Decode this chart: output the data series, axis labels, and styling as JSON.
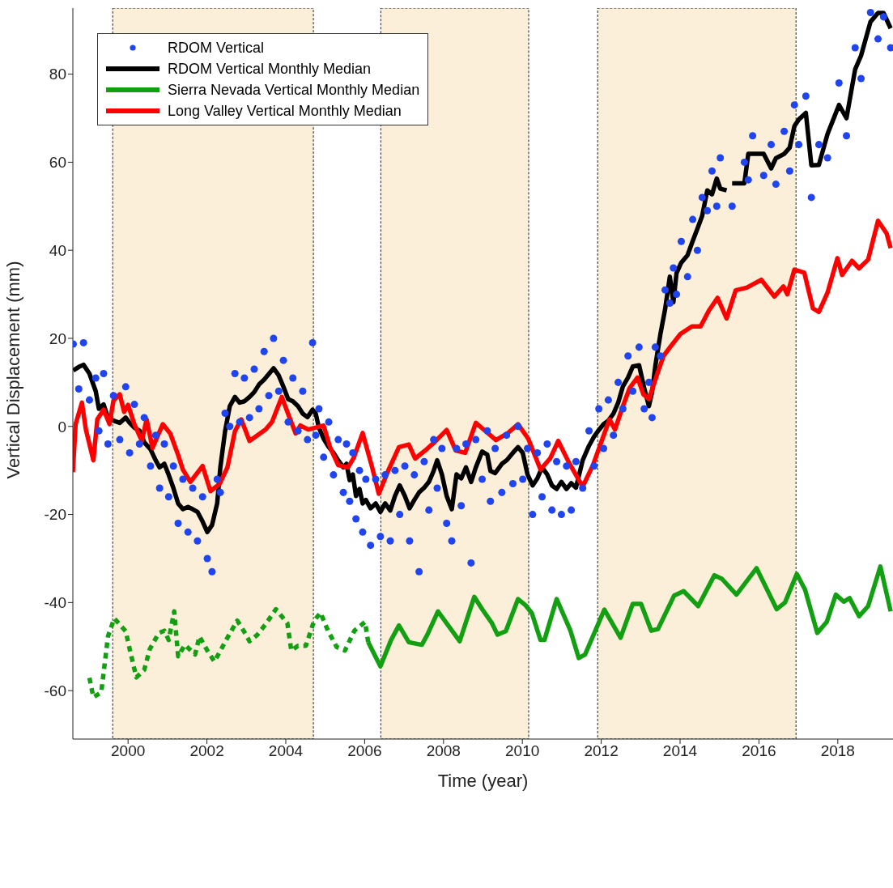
{
  "chart_data": {
    "type": "line",
    "xlabel": "Time (year)",
    "ylabel": "Vertical Displacement (mm)",
    "xlim": [
      1998.6,
      2019.4
    ],
    "xticks": [
      2000,
      2002,
      2004,
      2006,
      2008,
      2010,
      2012,
      2014,
      2016,
      2018
    ],
    "ylim": [
      -71,
      95
    ],
    "yticks": [
      -60,
      -40,
      -20,
      0,
      20,
      40,
      60,
      80
    ],
    "legend": "top left",
    "bands": [
      {
        "axis": "x",
        "from": 1999.61,
        "to": 2004.7,
        "color": "#fcefd9"
      },
      {
        "axis": "x",
        "from": 2006.41,
        "to": 2010.16,
        "color": "#fcefd9"
      },
      {
        "axis": "x",
        "from": 2011.91,
        "to": 2016.94,
        "color": "#fcefd9"
      }
    ],
    "series": [
      {
        "name": "RDOM Vertical",
        "type": "scatter",
        "marker": "circle",
        "color": "#1f44f0",
        "x": [
          1998.61,
          1998.75,
          1998.87,
          1999.02,
          1999.18,
          1999.26,
          1999.38,
          1999.49,
          1999.63,
          1999.79,
          1999.94,
          2000.04,
          2000.16,
          2000.29,
          2000.41,
          2000.57,
          2000.7,
          2000.8,
          2000.92,
          2001.03,
          2001.15,
          2001.27,
          2001.39,
          2001.52,
          2001.64,
          2001.76,
          2001.89,
          2002.01,
          2002.13,
          2002.26,
          2002.34,
          2002.46,
          2002.58,
          2002.71,
          2002.83,
          2002.95,
          2003.08,
          2003.2,
          2003.32,
          2003.45,
          2003.57,
          2003.69,
          2003.82,
          2003.94,
          2004.06,
          2004.18,
          2004.31,
          2004.43,
          2004.55,
          2004.68,
          2004.76,
          2004.84,
          2004.96,
          2005.09,
          2005.21,
          2005.33,
          2005.46,
          2005.54,
          2005.62,
          2005.7,
          2005.78,
          2005.87,
          2005.95,
          2006.03,
          2006.15,
          2006.28,
          2006.4,
          2006.52,
          2006.65,
          2006.77,
          2006.89,
          2007.02,
          2007.14,
          2007.26,
          2007.38,
          2007.51,
          2007.63,
          2007.75,
          2007.84,
          2007.96,
          2008.08,
          2008.21,
          2008.33,
          2008.45,
          2008.57,
          2008.7,
          2008.82,
          2008.98,
          2009.11,
          2009.19,
          2009.31,
          2009.48,
          2009.6,
          2009.76,
          2009.89,
          2010.01,
          2010.13,
          2010.26,
          2010.38,
          2010.5,
          2010.63,
          2010.75,
          2010.87,
          2010.99,
          2011.12,
          2011.24,
          2011.36,
          2011.53,
          2011.69,
          2011.82,
          2011.94,
          2012.06,
          2012.18,
          2012.31,
          2012.43,
          2012.55,
          2012.68,
          2012.8,
          2012.96,
          2013.09,
          2013.21,
          2013.29,
          2013.37,
          2013.5,
          2013.62,
          2013.74,
          2013.83,
          2013.91,
          2014.03,
          2014.19,
          2014.32,
          2014.44,
          2014.56,
          2014.69,
          2014.81,
          2014.93,
          2015.02,
          2015.32,
          2015.63,
          2015.73,
          2015.84,
          2016.12,
          2016.31,
          2016.43,
          2016.64,
          2016.78,
          2016.9,
          2017.01,
          2017.19,
          2017.33,
          2017.52,
          2017.74,
          2018.03,
          2018.22,
          2018.44,
          2018.59,
          2018.83,
          2019.02,
          2019.16,
          2019.34
        ],
        "values": [
          18.7,
          8.5,
          19,
          6,
          11,
          -1,
          12,
          -4,
          7,
          -3,
          9,
          -6,
          5,
          -4,
          2,
          -9,
          -2,
          -14,
          -4,
          -16,
          -9,
          -22,
          -12,
          -24,
          -14,
          -26,
          -16,
          -30,
          -33,
          -12,
          -15,
          3,
          0,
          12,
          1,
          11,
          2,
          13,
          4,
          17,
          7,
          20,
          8,
          15,
          1,
          11,
          -1,
          8,
          -3,
          19,
          -2,
          4,
          -7,
          1,
          -11,
          -3,
          -15,
          -4,
          -17,
          -6,
          -21,
          -10,
          -24,
          -12,
          -27,
          -12,
          -25,
          -11,
          -26,
          -10,
          -20,
          -9,
          -26,
          -11,
          -33,
          -8,
          -19,
          -3,
          -14,
          -5,
          -22,
          -26,
          -5,
          -18,
          -4,
          -31,
          -3,
          -12,
          -1,
          -17,
          -5,
          -15,
          -2,
          -13,
          0,
          -12,
          -5,
          -20,
          -6,
          -16,
          -4,
          -19,
          -8,
          -20,
          -9,
          -19,
          -8,
          -14,
          -1,
          -9,
          4,
          -5,
          6,
          -2,
          10,
          4,
          16,
          8,
          18,
          4,
          10,
          2,
          18,
          16,
          31,
          28,
          36,
          30,
          42,
          34,
          47,
          40,
          52,
          49,
          58,
          50,
          61,
          50,
          60,
          56,
          66,
          57,
          64,
          55,
          67,
          58,
          73,
          64,
          75,
          52,
          64,
          61,
          78,
          66,
          86,
          79,
          94,
          88,
          93,
          86
        ]
      },
      {
        "name": "RDOM Vertical Monthly Median",
        "type": "line",
        "color": "#000000",
        "x": [
          1998.61,
          1998.75,
          1998.87,
          1999.02,
          1999.18,
          1999.26,
          1999.38,
          1999.49,
          1999.63,
          1999.79,
          1999.94,
          2000.04,
          2000.16,
          2000.29,
          2000.41,
          2000.57,
          2000.7,
          2000.8,
          2000.92,
          2001.03,
          2001.15,
          2001.27,
          2001.39,
          2001.52,
          2001.64,
          2001.76,
          2001.89,
          2002.01,
          2002.13,
          2002.26,
          2002.34,
          2002.46,
          2002.58,
          2002.71,
          2002.83,
          2002.95,
          2003.08,
          2003.2,
          2003.32,
          2003.45,
          2003.57,
          2003.69,
          2003.82,
          2003.94,
          2004.06,
          2004.18,
          2004.31,
          2004.43,
          2004.55,
          2004.68,
          2004.76,
          2004.84,
          2004.96,
          2005.09,
          2005.21,
          2005.33,
          2005.46,
          2005.54,
          2005.62,
          2005.7,
          2005.78,
          2005.87,
          2005.95,
          2006.03,
          2006.15,
          2006.28,
          2006.4,
          2006.52,
          2006.65,
          2006.77,
          2006.89,
          2007.02,
          2007.14,
          2007.26,
          2007.38,
          2007.51,
          2007.63,
          2007.75,
          2007.84,
          2007.96,
          2008.08,
          2008.21,
          2008.33,
          2008.45,
          2008.57,
          2008.7,
          2008.82,
          2008.98,
          2009.11,
          2009.19,
          2009.31,
          2009.48,
          2009.6,
          2009.76,
          2009.89,
          2010.01,
          2010.13,
          2010.26,
          2010.38,
          2010.5,
          2010.63,
          2010.75,
          2010.87,
          2010.99,
          2011.12,
          2011.24,
          2011.36,
          2011.53,
          2011.69,
          2011.82,
          2011.94,
          2012.06,
          2012.18,
          2012.31,
          2012.43,
          2012.55,
          2012.68,
          2012.8,
          2012.96,
          2013.09,
          2013.21,
          2013.29,
          2013.37,
          2013.5,
          2013.62,
          2013.74,
          2013.83,
          2013.91,
          2014.03,
          2014.19,
          2014.32,
          2014.44,
          2014.56,
          2014.69,
          2014.81,
          2014.93,
          2015.02,
          2015.18,
          2015.25,
          2015.32,
          2015.63,
          2015.73,
          2015.84,
          2016.12,
          2016.31,
          2016.43,
          2016.64,
          2016.78,
          2016.9,
          2017.01,
          2017.19,
          2017.33,
          2017.52,
          2017.74,
          2018.03,
          2018.22,
          2018.44,
          2018.59,
          2018.83,
          2019.02,
          2019.16,
          2019.34
        ],
        "values": [
          12.7,
          13.5,
          14,
          12,
          8,
          4,
          5,
          2,
          1.3,
          0.8,
          2,
          0.8,
          -0.3,
          -1,
          -3.6,
          -5.2,
          -7.7,
          -9.3,
          -8.5,
          -11,
          -14,
          -17.5,
          -18.8,
          -18.3,
          -18.8,
          -19.4,
          -21.6,
          -24,
          -22.4,
          -17.5,
          -9.3,
          -1.1,
          4.6,
          6.7,
          5.4,
          5.7,
          6.7,
          7.8,
          9.5,
          10.6,
          11.9,
          13.2,
          11.6,
          9,
          6.2,
          5.7,
          4.6,
          2.9,
          2.1,
          3.8,
          2.9,
          -0.3,
          -2.8,
          -4.7,
          -6,
          -7.7,
          -9.3,
          -8.5,
          -12.2,
          -10.9,
          -15.8,
          -14.2,
          -17.5,
          -16.7,
          -18.6,
          -17.5,
          -19.4,
          -17.5,
          -19.1,
          -15.8,
          -13.4,
          -15.8,
          -18.6,
          -16.7,
          -15,
          -13.9,
          -12.6,
          -10.1,
          -7.7,
          -10.9,
          -15.8,
          -18.8,
          -10.9,
          -11.8,
          -9.3,
          -12.6,
          -9.3,
          -5.7,
          -6.4,
          -10.1,
          -10.6,
          -8.5,
          -7.7,
          -6,
          -4.7,
          -6,
          -10.9,
          -13.4,
          -11.8,
          -9.3,
          -10.9,
          -13.4,
          -14.2,
          -12.6,
          -14.2,
          -12.9,
          -13.9,
          -7.7,
          -4.4,
          -2.3,
          -0.8,
          0.5,
          1.3,
          2.9,
          5.4,
          9.1,
          11.1,
          13.6,
          13.9,
          8.7,
          4.6,
          7.8,
          13.6,
          20.9,
          26.6,
          34,
          28.2,
          34.8,
          37.2,
          38.9,
          42.1,
          44.9,
          47.8,
          53.6,
          52.7,
          56.3,
          54,
          53.6,
          null,
          55.2,
          55.2,
          61.9,
          61.9,
          61.9,
          58.6,
          60.9,
          61.9,
          63.3,
          68.2,
          69.7,
          71.2,
          59.3,
          59.4,
          66.4,
          73,
          70,
          81.1,
          84.2,
          91.9,
          93.9,
          93.9,
          90.4
        ]
      },
      {
        "name": "Sierra Nevada Vertical Monthly Median",
        "type": "line",
        "color": "#12a012",
        "x": [
          2006.09,
          2006.4,
          2006.67,
          2006.87,
          2007.12,
          2007.45,
          2007.59,
          2007.86,
          2008.41,
          2008.78,
          2008.98,
          2009.23,
          2009.37,
          2009.58,
          2009.89,
          2010.09,
          2010.24,
          2010.46,
          2010.56,
          2010.87,
          2011.22,
          2011.43,
          2011.59,
          2012.08,
          2012.49,
          2012.8,
          2013.01,
          2013.27,
          2013.44,
          2013.85,
          2014.09,
          2014.46,
          2014.87,
          2015.06,
          2015.43,
          2015.94,
          2016.45,
          2016.66,
          2016.96,
          2017.17,
          2017.48,
          2017.72,
          2017.95,
          2018.15,
          2018.3,
          2018.54,
          2018.77,
          2019.08,
          2019.34
        ],
        "values": [
          -49,
          -54.5,
          -48.5,
          -45.2,
          -49,
          -49.6,
          -47.3,
          -42,
          -48.8,
          -38.7,
          -41.5,
          -44.7,
          -47.3,
          -46.5,
          -39.2,
          -40.7,
          -42.4,
          -48.5,
          -48.5,
          -39.2,
          -46.4,
          -52.6,
          -51.8,
          -41.6,
          -48,
          -40.3,
          -40.3,
          -46.4,
          -46,
          -38.4,
          -37.4,
          -40.8,
          -33.8,
          -34.6,
          -38.2,
          -32.2,
          -41.5,
          -40,
          -33.5,
          -37.1,
          -46.9,
          -44.4,
          -38.2,
          -39.8,
          -39,
          -43.1,
          -40.8,
          -31.8,
          -42
        ]
      },
      {
        "type": "line",
        "color": "#12a012",
        "line_style": "dashed",
        "x": [
          1999.02,
          1999.12,
          1999.32,
          1999.43,
          1999.49,
          1999.65,
          1999.94,
          2000.06,
          2000.21,
          2000.41,
          2000.55,
          2000.78,
          2000.92,
          2001.03,
          2001.17,
          2001.27,
          2001.44,
          2001.7,
          2001.81,
          2002.01,
          2002.19,
          2002.52,
          2002.77,
          2002.93,
          2003.08,
          2003.28,
          2003.49,
          2003.75,
          2004.04,
          2004.14,
          2004.31,
          2004.51,
          2004.72,
          2004.88,
          2005.07,
          2005.29,
          2005.5,
          2005.74,
          2006.01,
          2006.09
        ],
        "values": [
          -57.1,
          -61.5,
          -60.4,
          -52.2,
          -47.7,
          -43.6,
          -46.5,
          -51.3,
          -57,
          -55.3,
          -50.6,
          -46.9,
          -46.4,
          -48.5,
          -42,
          -52.2,
          -49.6,
          -51.8,
          -47.7,
          -50.9,
          -53.4,
          -48,
          -44.1,
          -46.4,
          -48.8,
          -47.3,
          -44.9,
          -41.5,
          -44.7,
          -50.9,
          -49.8,
          -49.8,
          -44.1,
          -42.3,
          -46.4,
          -50.1,
          -50.9,
          -46.4,
          -44.4,
          -49
        ]
      },
      {
        "name": "Long Valley Vertical Monthly Median",
        "type": "line",
        "color": "#ff0000",
        "x": [
          1998.6,
          1998.67,
          1998.83,
          1998.93,
          1999.12,
          1999.22,
          1999.38,
          1999.53,
          1999.63,
          1999.79,
          1999.9,
          2000.0,
          2000.16,
          2000.35,
          2000.47,
          2000.62,
          2000.88,
          2001.07,
          2001.27,
          2001.39,
          2001.58,
          2001.89,
          2002.09,
          2002.32,
          2002.52,
          2002.71,
          2002.87,
          2003.08,
          2003.49,
          2003.65,
          2003.9,
          2004.04,
          2004.25,
          2004.37,
          2004.57,
          2004.96,
          2005.13,
          2005.33,
          2005.58,
          2005.72,
          2005.95,
          2006.19,
          2006.36,
          2006.61,
          2006.87,
          2007.12,
          2007.28,
          2007.57,
          2007.77,
          2008.08,
          2008.31,
          2008.55,
          2008.82,
          2009.07,
          2009.33,
          2009.62,
          2009.89,
          2010.15,
          2010.46,
          2010.71,
          2010.91,
          2011.18,
          2011.53,
          2011.79,
          2012.08,
          2012.21,
          2012.35,
          2012.55,
          2012.72,
          2012.92,
          2013.07,
          2013.21,
          2013.42,
          2013.58,
          2013.78,
          2014.01,
          2014.3,
          2014.52,
          2014.73,
          2014.95,
          2015.18,
          2015.41,
          2015.69,
          2016.06,
          2016.39,
          2016.62,
          2016.72,
          2016.9,
          2017.15,
          2017.37,
          2017.52,
          2017.74,
          2017.99,
          2018.11,
          2018.36,
          2018.54,
          2018.77,
          2019.02,
          2019.24,
          2019.34
        ],
        "values": [
          -10.4,
          0.5,
          5.4,
          -0.7,
          -7.7,
          1.6,
          3.8,
          0.5,
          5.9,
          7.3,
          3.3,
          4.9,
          0.5,
          -3.3,
          1.6,
          -4.9,
          0.5,
          -1.6,
          -6.5,
          -9.8,
          -12.6,
          -9,
          -14.7,
          -13.1,
          -9.3,
          -1.1,
          1.6,
          -3.3,
          -0.7,
          1,
          6.7,
          3.3,
          -1.6,
          0.2,
          -0.7,
          0.2,
          -4.9,
          -8.8,
          -9.3,
          -7.2,
          -1.5,
          -9.3,
          -15.3,
          -9.8,
          -4.7,
          -4.1,
          -7.3,
          -5.2,
          -3.6,
          -0.8,
          -5.5,
          -6,
          0.8,
          -1.1,
          -3.1,
          -1.6,
          0.5,
          -2.8,
          -9.8,
          -7.2,
          -3.3,
          -8.2,
          -13.7,
          -8.8,
          -1.6,
          1.6,
          -0.7,
          4.6,
          8.7,
          11.1,
          7.3,
          6.2,
          11.9,
          16,
          18.4,
          21,
          22.7,
          22.7,
          26.3,
          29.2,
          24.5,
          30.9,
          31.5,
          33.3,
          29.5,
          31.8,
          30,
          35.6,
          34.9,
          26.8,
          26,
          30.4,
          38.2,
          34.4,
          37.6,
          35.9,
          37.9,
          46.7,
          43.8,
          40.5
        ]
      }
    ]
  }
}
